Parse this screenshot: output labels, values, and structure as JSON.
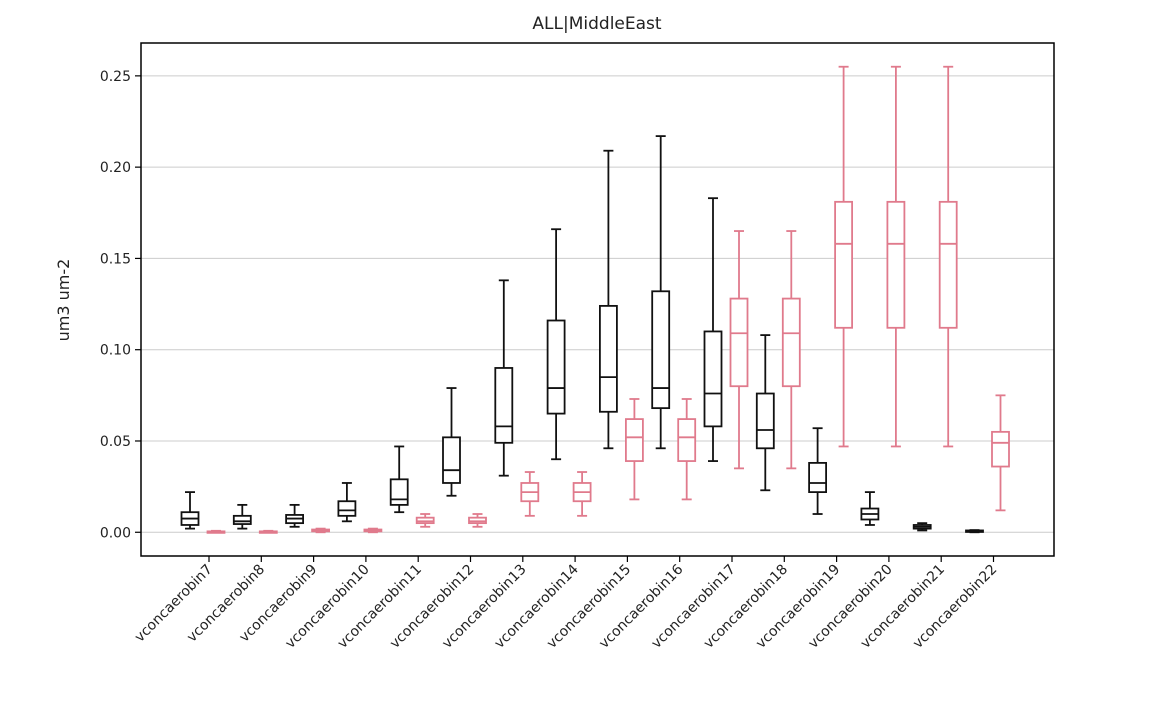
{
  "chart_data": {
    "type": "box",
    "title": "ALL|MiddleEast",
    "xlabel": "",
    "ylabel": "um3 um-2",
    "ylim": [
      -0.013,
      0.268
    ],
    "yticks": [
      0.0,
      0.05,
      0.1,
      0.15,
      0.2,
      0.25
    ],
    "ytick_labels": [
      "0.00",
      "0.05",
      "0.10",
      "0.15",
      "0.20",
      "0.25"
    ],
    "grid": "horizontal",
    "colors": {
      "black": "#111111",
      "pink": "#e07a8c",
      "grid": "#cccccc",
      "frame": "#000000"
    },
    "categories": [
      "vconcaerobin7",
      "vconcaerobin8",
      "vconcaerobin9",
      "vconcaerobin10",
      "vconcaerobin11",
      "vconcaerobin12",
      "vconcaerobin13",
      "vconcaerobin14",
      "vconcaerobin15",
      "vconcaerobin16",
      "vconcaerobin17",
      "vconcaerobin18",
      "vconcaerobin19",
      "vconcaerobin20",
      "vconcaerobin21",
      "vconcaerobin22"
    ],
    "boxes": [
      {
        "category": "vconcaerobin7",
        "series": "black",
        "min": 0.002,
        "q1": 0.004,
        "median": 0.0075,
        "q3": 0.011,
        "max": 0.022
      },
      {
        "category": "vconcaerobin7",
        "series": "pink",
        "min": 0.0,
        "q1": 0.0,
        "median": 0.0,
        "q3": 0.0005,
        "max": 0.0008
      },
      {
        "category": "vconcaerobin8",
        "series": "black",
        "min": 0.002,
        "q1": 0.0045,
        "median": 0.006,
        "q3": 0.009,
        "max": 0.015
      },
      {
        "category": "vconcaerobin8",
        "series": "pink",
        "min": 0.0,
        "q1": 0.0,
        "median": 0.0,
        "q3": 0.0005,
        "max": 0.0008
      },
      {
        "category": "vconcaerobin9",
        "series": "black",
        "min": 0.003,
        "q1": 0.005,
        "median": 0.0075,
        "q3": 0.0095,
        "max": 0.015
      },
      {
        "category": "vconcaerobin9",
        "series": "pink",
        "min": 0.0,
        "q1": 0.0005,
        "median": 0.001,
        "q3": 0.0015,
        "max": 0.002
      },
      {
        "category": "vconcaerobin10",
        "series": "black",
        "min": 0.006,
        "q1": 0.009,
        "median": 0.012,
        "q3": 0.017,
        "max": 0.027
      },
      {
        "category": "vconcaerobin10",
        "series": "pink",
        "min": 0.0,
        "q1": 0.0005,
        "median": 0.001,
        "q3": 0.0015,
        "max": 0.002
      },
      {
        "category": "vconcaerobin11",
        "series": "black",
        "min": 0.011,
        "q1": 0.015,
        "median": 0.018,
        "q3": 0.029,
        "max": 0.047
      },
      {
        "category": "vconcaerobin11",
        "series": "pink",
        "min": 0.003,
        "q1": 0.005,
        "median": 0.006,
        "q3": 0.008,
        "max": 0.01
      },
      {
        "category": "vconcaerobin12",
        "series": "black",
        "min": 0.02,
        "q1": 0.027,
        "median": 0.034,
        "q3": 0.052,
        "max": 0.079
      },
      {
        "category": "vconcaerobin12",
        "series": "pink",
        "min": 0.003,
        "q1": 0.005,
        "median": 0.006,
        "q3": 0.008,
        "max": 0.01
      },
      {
        "category": "vconcaerobin13",
        "series": "black",
        "min": 0.031,
        "q1": 0.049,
        "median": 0.058,
        "q3": 0.09,
        "max": 0.138
      },
      {
        "category": "vconcaerobin13",
        "series": "pink",
        "min": 0.009,
        "q1": 0.017,
        "median": 0.022,
        "q3": 0.027,
        "max": 0.033
      },
      {
        "category": "vconcaerobin14",
        "series": "black",
        "min": 0.04,
        "q1": 0.065,
        "median": 0.079,
        "q3": 0.116,
        "max": 0.166
      },
      {
        "category": "vconcaerobin14",
        "series": "pink",
        "min": 0.009,
        "q1": 0.017,
        "median": 0.022,
        "q3": 0.027,
        "max": 0.033
      },
      {
        "category": "vconcaerobin15",
        "series": "black",
        "min": 0.046,
        "q1": 0.066,
        "median": 0.085,
        "q3": 0.124,
        "max": 0.209
      },
      {
        "category": "vconcaerobin15",
        "series": "pink",
        "min": 0.018,
        "q1": 0.039,
        "median": 0.052,
        "q3": 0.062,
        "max": 0.073
      },
      {
        "category": "vconcaerobin16",
        "series": "black",
        "min": 0.046,
        "q1": 0.068,
        "median": 0.079,
        "q3": 0.132,
        "max": 0.217
      },
      {
        "category": "vconcaerobin16",
        "series": "pink",
        "min": 0.018,
        "q1": 0.039,
        "median": 0.052,
        "q3": 0.062,
        "max": 0.073
      },
      {
        "category": "vconcaerobin17",
        "series": "black",
        "min": 0.039,
        "q1": 0.058,
        "median": 0.076,
        "q3": 0.11,
        "max": 0.183
      },
      {
        "category": "vconcaerobin17",
        "series": "pink",
        "min": 0.035,
        "q1": 0.08,
        "median": 0.109,
        "q3": 0.128,
        "max": 0.165
      },
      {
        "category": "vconcaerobin18",
        "series": "black",
        "min": 0.023,
        "q1": 0.046,
        "median": 0.056,
        "q3": 0.076,
        "max": 0.108
      },
      {
        "category": "vconcaerobin18",
        "series": "pink",
        "min": 0.035,
        "q1": 0.08,
        "median": 0.109,
        "q3": 0.128,
        "max": 0.165
      },
      {
        "category": "vconcaerobin19",
        "series": "black",
        "min": 0.01,
        "q1": 0.022,
        "median": 0.027,
        "q3": 0.038,
        "max": 0.057
      },
      {
        "category": "vconcaerobin19",
        "series": "pink",
        "min": 0.047,
        "q1": 0.112,
        "median": 0.158,
        "q3": 0.181,
        "max": 0.255
      },
      {
        "category": "vconcaerobin20",
        "series": "black",
        "min": 0.004,
        "q1": 0.007,
        "median": 0.01,
        "q3": 0.013,
        "max": 0.022
      },
      {
        "category": "vconcaerobin20",
        "series": "pink",
        "min": 0.047,
        "q1": 0.112,
        "median": 0.158,
        "q3": 0.181,
        "max": 0.255
      },
      {
        "category": "vconcaerobin21",
        "series": "black",
        "min": 0.001,
        "q1": 0.002,
        "median": 0.003,
        "q3": 0.004,
        "max": 0.005
      },
      {
        "category": "vconcaerobin21",
        "series": "pink",
        "min": 0.047,
        "q1": 0.112,
        "median": 0.158,
        "q3": 0.181,
        "max": 0.255
      },
      {
        "category": "vconcaerobin22",
        "series": "black",
        "min": 0.0,
        "q1": 0.0003,
        "median": 0.0006,
        "q3": 0.001,
        "max": 0.0012
      },
      {
        "category": "vconcaerobin22",
        "series": "pink",
        "min": 0.012,
        "q1": 0.036,
        "median": 0.049,
        "q3": 0.055,
        "max": 0.075
      }
    ]
  }
}
